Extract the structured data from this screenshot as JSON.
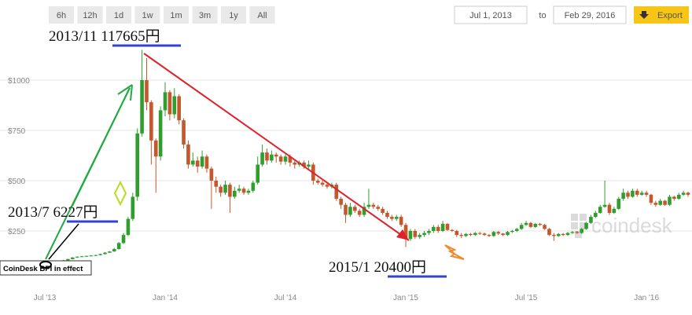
{
  "toolbar": {
    "ranges": [
      "6h",
      "12h",
      "1d",
      "1w",
      "1m",
      "3m",
      "1y",
      "All"
    ],
    "from": "Jul 1, 2013",
    "to_label": "to",
    "to": "Feb 29, 2016",
    "export": "Export"
  },
  "chart_data": {
    "type": "candlestick",
    "categories": [
      "Jul '13",
      null,
      null,
      null,
      null,
      null,
      null,
      null,
      null,
      null,
      null,
      null,
      null,
      null,
      null,
      null,
      null,
      null,
      null,
      null,
      null,
      null,
      null,
      null,
      null,
      null,
      "Jan '14",
      null,
      null,
      null,
      null,
      null,
      null,
      null,
      null,
      null,
      null,
      null,
      null,
      null,
      null,
      null,
      null,
      null,
      null,
      null,
      null,
      null,
      null,
      null,
      null,
      null,
      "Jul '14",
      null,
      null,
      null,
      null,
      null,
      null,
      null,
      null,
      null,
      null,
      null,
      null,
      null,
      null,
      null,
      null,
      null,
      null,
      null,
      null,
      null,
      null,
      null,
      null,
      null,
      "Jan '15",
      null,
      null,
      null,
      null,
      null,
      null,
      null,
      null,
      null,
      null,
      null,
      null,
      null,
      null,
      null,
      null,
      null,
      null,
      null,
      null,
      null,
      null,
      null,
      null,
      null,
      "Jul '15",
      null,
      null,
      null,
      null,
      null,
      null,
      null,
      null,
      null,
      null,
      null,
      null,
      null,
      null,
      null,
      null,
      null,
      null,
      null,
      null,
      null,
      null,
      null,
      null,
      null,
      "Jan '16",
      null,
      null,
      null,
      null,
      null,
      null,
      null,
      null,
      null
    ],
    "open": [
      95,
      88,
      80,
      90,
      98,
      104,
      110,
      118,
      122,
      124,
      126,
      128,
      130,
      135,
      142,
      148,
      160,
      190,
      230,
      310,
      420,
      735,
      1000,
      890,
      700,
      620,
      850,
      940,
      830,
      920,
      800,
      680,
      580,
      600,
      570,
      620,
      560,
      500,
      470,
      440,
      480,
      420,
      450,
      460,
      440,
      450,
      490,
      580,
      640,
      600,
      630,
      620,
      595,
      620,
      590,
      580,
      590,
      570,
      580,
      500,
      490,
      480,
      470,
      480,
      410,
      380,
      330,
      370,
      350,
      330,
      370,
      380,
      370,
      360,
      340,
      320,
      310,
      320,
      280,
      210,
      250,
      220,
      230,
      240,
      250,
      270,
      250,
      285,
      255,
      250,
      230,
      225,
      235,
      230,
      240,
      237,
      230,
      225,
      245,
      237,
      230,
      245,
      250,
      260,
      280,
      290,
      270,
      285,
      280,
      260,
      230,
      225,
      235,
      230,
      240,
      245,
      240,
      260,
      290,
      320,
      340,
      370,
      380,
      340,
      360,
      410,
      440,
      420,
      450,
      430,
      440,
      430,
      390,
      380,
      400,
      380,
      420,
      410,
      430,
      440
    ],
    "high": [
      100,
      92,
      93,
      100,
      106,
      112,
      120,
      124,
      126,
      128,
      130,
      132,
      137,
      145,
      150,
      165,
      195,
      240,
      320,
      440,
      760,
      1150,
      1110,
      900,
      710,
      870,
      990,
      950,
      960,
      930,
      810,
      700,
      640,
      620,
      650,
      630,
      570,
      520,
      480,
      500,
      490,
      470,
      480,
      470,
      460,
      500,
      620,
      680,
      660,
      650,
      640,
      630,
      630,
      630,
      600,
      600,
      600,
      600,
      590,
      510,
      500,
      490,
      490,
      490,
      420,
      390,
      390,
      380,
      360,
      390,
      460,
      390,
      380,
      370,
      350,
      330,
      330,
      330,
      290,
      260,
      260,
      240,
      250,
      260,
      280,
      280,
      300,
      290,
      260,
      255,
      240,
      240,
      240,
      245,
      245,
      242,
      235,
      250,
      250,
      240,
      250,
      255,
      265,
      290,
      300,
      295,
      290,
      290,
      285,
      265,
      240,
      240,
      240,
      245,
      250,
      250,
      265,
      295,
      330,
      350,
      380,
      500,
      390,
      370,
      420,
      460,
      450,
      460,
      460,
      450,
      450,
      435,
      400,
      410,
      405,
      430,
      425,
      440,
      450,
      445
    ],
    "low": [
      85,
      75,
      78,
      88,
      95,
      100,
      108,
      115,
      120,
      122,
      124,
      126,
      128,
      133,
      140,
      146,
      158,
      185,
      225,
      300,
      400,
      720,
      850,
      580,
      440,
      600,
      820,
      800,
      810,
      780,
      660,
      560,
      570,
      540,
      560,
      540,
      360,
      440,
      420,
      430,
      340,
      410,
      440,
      430,
      430,
      440,
      480,
      570,
      580,
      590,
      590,
      580,
      580,
      570,
      560,
      570,
      560,
      560,
      480,
      480,
      470,
      460,
      460,
      400,
      360,
      290,
      320,
      340,
      320,
      320,
      360,
      360,
      350,
      330,
      310,
      300,
      300,
      270,
      170,
      200,
      210,
      210,
      220,
      230,
      240,
      240,
      245,
      250,
      245,
      220,
      215,
      220,
      225,
      225,
      230,
      225,
      220,
      220,
      230,
      225,
      225,
      240,
      245,
      255,
      275,
      265,
      265,
      275,
      255,
      225,
      200,
      220,
      225,
      225,
      235,
      235,
      235,
      255,
      285,
      315,
      335,
      365,
      330,
      335,
      355,
      400,
      410,
      415,
      420,
      425,
      420,
      380,
      370,
      375,
      375,
      375,
      400,
      405,
      425,
      420
    ],
    "close": [
      88,
      80,
      90,
      98,
      104,
      110,
      118,
      122,
      124,
      126,
      128,
      130,
      135,
      142,
      148,
      160,
      190,
      230,
      310,
      420,
      735,
      1000,
      890,
      700,
      620,
      850,
      940,
      830,
      920,
      800,
      680,
      580,
      600,
      570,
      620,
      560,
      500,
      470,
      440,
      480,
      420,
      450,
      460,
      440,
      450,
      490,
      580,
      640,
      600,
      630,
      620,
      595,
      620,
      590,
      580,
      590,
      570,
      580,
      500,
      490,
      480,
      470,
      480,
      410,
      380,
      330,
      370,
      350,
      330,
      370,
      380,
      370,
      360,
      340,
      320,
      310,
      320,
      280,
      210,
      250,
      220,
      230,
      240,
      250,
      270,
      250,
      285,
      255,
      250,
      230,
      225,
      235,
      230,
      240,
      237,
      230,
      225,
      245,
      237,
      230,
      245,
      250,
      260,
      280,
      290,
      270,
      285,
      280,
      260,
      230,
      225,
      235,
      230,
      240,
      245,
      240,
      260,
      290,
      320,
      340,
      370,
      380,
      340,
      360,
      410,
      440,
      420,
      450,
      430,
      440,
      430,
      390,
      380,
      400,
      380,
      420,
      410,
      430,
      440,
      430
    ],
    "up_color": "#2f9e2f",
    "down_color": "#c4572b",
    "ylim": [
      0,
      1250
    ],
    "yticks": [
      {
        "value": 250,
        "label": "$250"
      },
      {
        "value": 500,
        "label": "$500"
      },
      {
        "value": 750,
        "label": "$750"
      },
      {
        "value": 1000,
        "label": "$1000"
      }
    ],
    "grid": true,
    "watermark": "coindesk",
    "note": "CoinDesk BPI in effect",
    "annotations": [
      {
        "date": "2013/11",
        "price": "117665円"
      },
      {
        "date": "2013/7",
        "price": "6227円"
      },
      {
        "date": "2015/1",
        "price": "20400円"
      }
    ]
  }
}
